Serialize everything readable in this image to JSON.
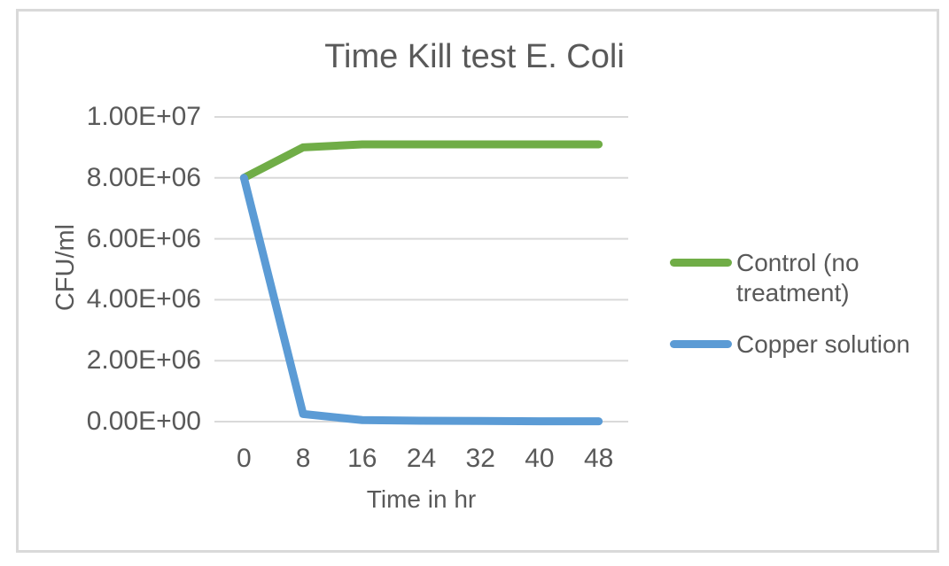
{
  "chart_data": {
    "type": "line",
    "title": "Time Kill test E. Coli",
    "xlabel": "Time in hr",
    "ylabel": "CFU/ml",
    "x_categories": [
      "0",
      "8",
      "16",
      "24",
      "32",
      "40",
      "48"
    ],
    "y_ticks": [
      "0.00E+00",
      "2.00E+06",
      "4.00E+06",
      "6.00E+06",
      "8.00E+06",
      "1.00E+07"
    ],
    "ylim": [
      0,
      10000000
    ],
    "grid": "horizontal",
    "legend_position": "right",
    "series": [
      {
        "name": "Control (no treatment)",
        "color": "#70ad47",
        "values": [
          8000000,
          9000000,
          9100000,
          9100000,
          9100000,
          9100000,
          9100000
        ]
      },
      {
        "name": "Copper solution",
        "color": "#5b9bd5",
        "values": [
          8000000,
          250000,
          50000,
          30000,
          20000,
          10000,
          10000
        ]
      }
    ],
    "colors": {
      "text": "#595959",
      "gridline": "#d9d9d9",
      "frame_border": "#d9d9d9"
    }
  }
}
